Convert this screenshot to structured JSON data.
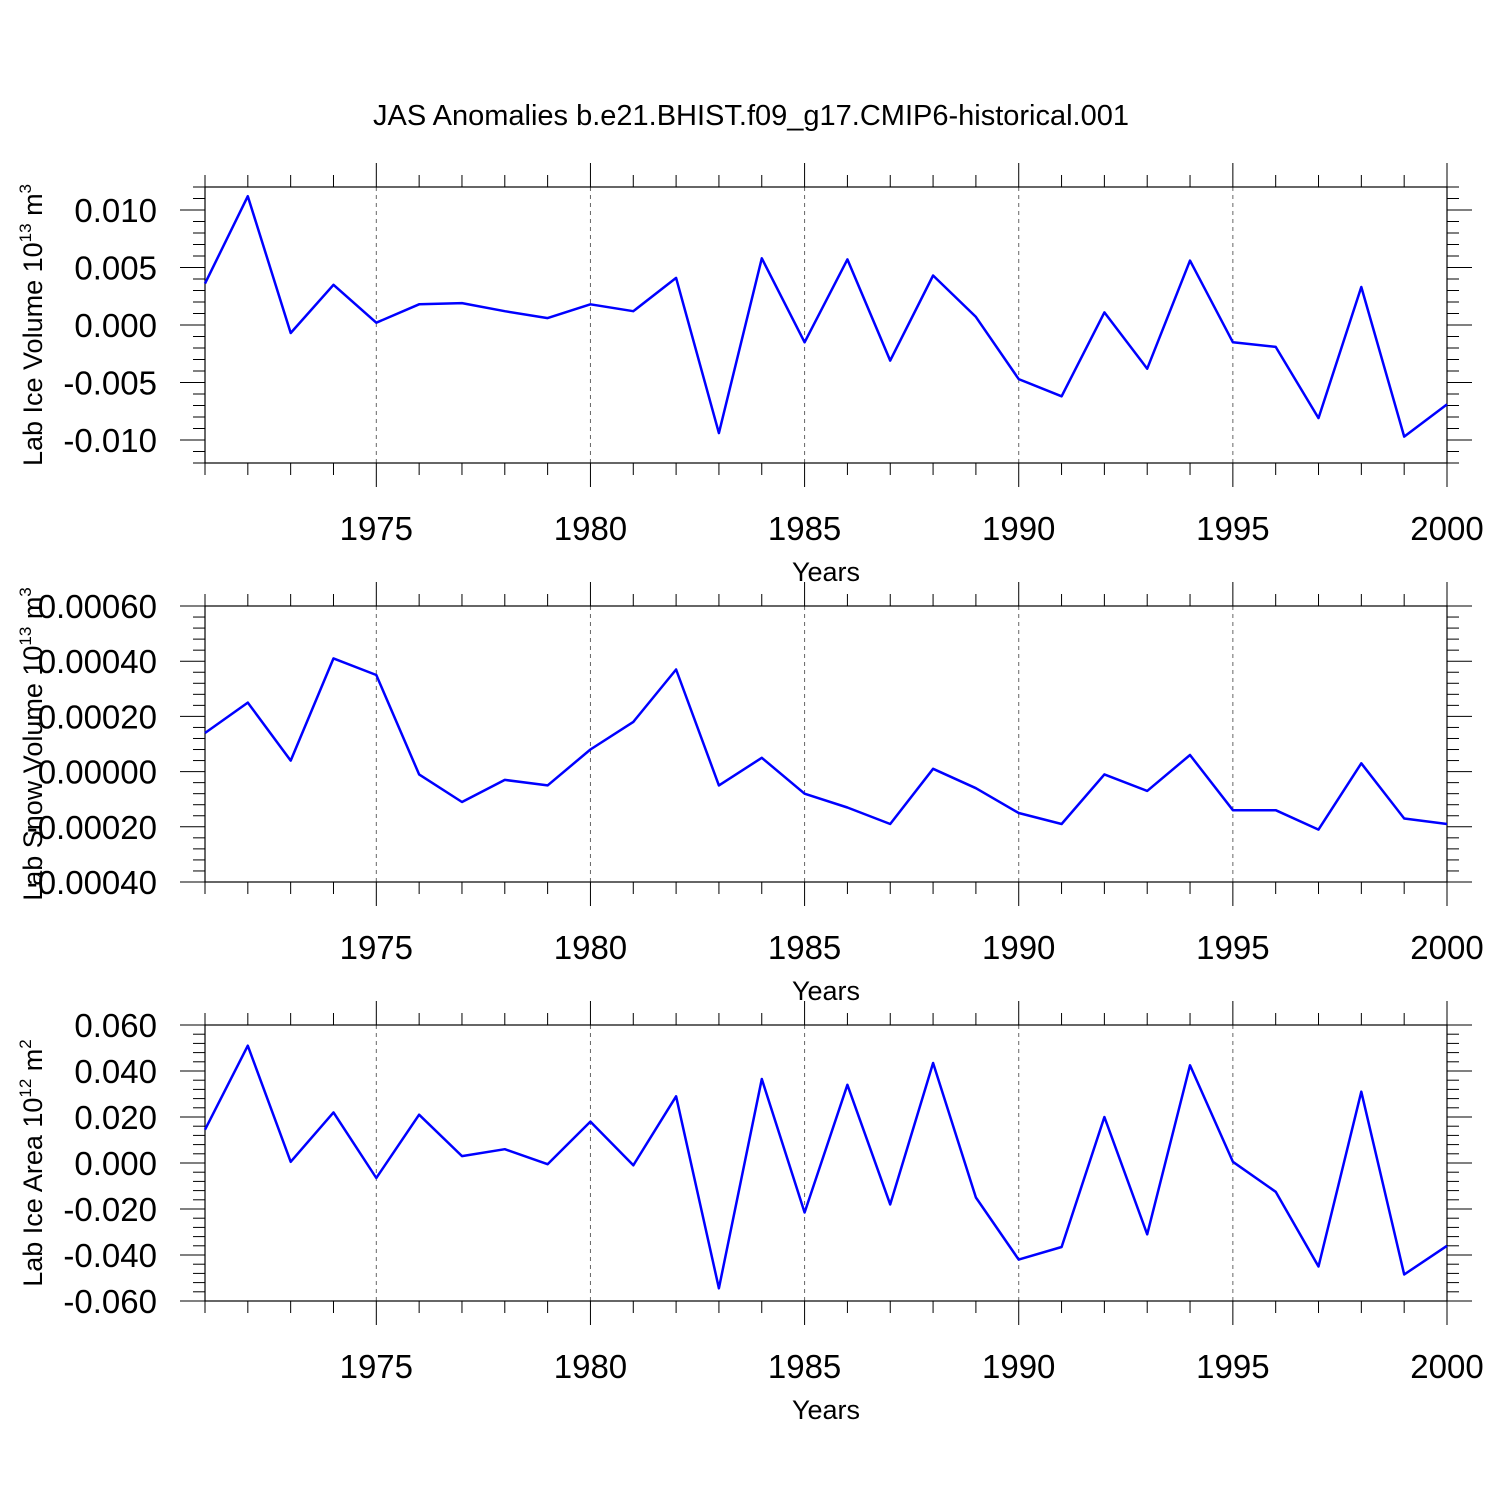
{
  "title": "JAS Anomalies b.e21.BHIST.f09_g17.CMIP6-historical.001",
  "colors": {
    "series": "#0000ff",
    "axis": "#000000",
    "grid": "#666666",
    "background": "#ffffff"
  },
  "chart_data": [
    {
      "type": "line",
      "ylabel": {
        "text": "Lab Ice Volume 10",
        "sup": "13",
        "unit": " m",
        "unit_sup": "3"
      },
      "xlabel": "Years",
      "xlim": [
        1971,
        2000
      ],
      "ylim": [
        -0.012,
        0.012
      ],
      "xticks": [
        1975,
        1980,
        1985,
        1990,
        1995,
        2000
      ],
      "yticks": [
        -0.01,
        -0.005,
        0.0,
        0.005,
        0.01
      ],
      "ytick_labels": [
        "-0.010",
        "-0.005",
        "0.000",
        "0.005",
        "0.010"
      ],
      "grid": "dashed vertical at major x ticks",
      "x": [
        1971,
        1972,
        1973,
        1974,
        1975,
        1976,
        1977,
        1978,
        1979,
        1980,
        1981,
        1982,
        1983,
        1984,
        1985,
        1986,
        1987,
        1988,
        1989,
        1990,
        1991,
        1992,
        1993,
        1994,
        1995,
        1996,
        1997,
        1998,
        1999,
        2000
      ],
      "values": [
        0.0036,
        0.0112,
        -0.0007,
        0.0035,
        0.0002,
        0.0018,
        0.0019,
        0.0012,
        0.0006,
        0.0018,
        0.0012,
        0.0041,
        -0.0094,
        0.0058,
        -0.0015,
        0.0057,
        -0.0031,
        0.0043,
        0.0007,
        -0.0047,
        -0.0062,
        0.0011,
        -0.0038,
        0.0056,
        -0.0015,
        -0.0019,
        -0.0081,
        0.0033,
        -0.0097,
        -0.0069
      ]
    },
    {
      "type": "line",
      "ylabel": {
        "text": "Lab Snow Volume 10",
        "sup": "13",
        "unit": " m",
        "unit_sup": "3"
      },
      "xlabel": "Years",
      "xlim": [
        1971,
        2000
      ],
      "ylim": [
        -0.0004,
        0.0006
      ],
      "xticks": [
        1975,
        1980,
        1985,
        1990,
        1995,
        2000
      ],
      "yticks": [
        -0.0004,
        -0.0002,
        0.0,
        0.0002,
        0.0004,
        0.0006
      ],
      "ytick_labels": [
        "-0.00040",
        "-0.00020",
        "0.00000",
        "0.00020",
        "0.00040",
        "0.00060"
      ],
      "grid": "dashed vertical at major x ticks",
      "x": [
        1971,
        1972,
        1973,
        1974,
        1975,
        1976,
        1977,
        1978,
        1979,
        1980,
        1981,
        1982,
        1983,
        1984,
        1985,
        1986,
        1987,
        1988,
        1989,
        1990,
        1991,
        1992,
        1993,
        1994,
        1995,
        1996,
        1997,
        1998,
        1999,
        2000
      ],
      "values": [
        0.00014,
        0.00025,
        4e-05,
        0.00041,
        0.00035,
        -1e-05,
        -0.00011,
        -3e-05,
        -5e-05,
        8e-05,
        0.00018,
        0.00037,
        -5e-05,
        5e-05,
        -8e-05,
        -0.00013,
        -0.00019,
        1e-05,
        -6e-05,
        -0.00015,
        -0.00019,
        -1e-05,
        -7e-05,
        6e-05,
        -0.00014,
        -0.00014,
        -0.00021,
        3e-05,
        -0.00017,
        -0.00019
      ]
    },
    {
      "type": "line",
      "ylabel": {
        "text": "Lab Ice Area 10",
        "sup": "12",
        "unit": " m",
        "unit_sup": "2"
      },
      "xlabel": "Years",
      "xlim": [
        1971,
        2000
      ],
      "ylim": [
        -0.06,
        0.06
      ],
      "xticks": [
        1975,
        1980,
        1985,
        1990,
        1995,
        2000
      ],
      "yticks": [
        -0.06,
        -0.04,
        -0.02,
        0.0,
        0.02,
        0.04,
        0.06
      ],
      "ytick_labels": [
        "-0.060",
        "-0.040",
        "-0.020",
        "0.000",
        "0.020",
        "0.040",
        "0.060"
      ],
      "grid": "dashed vertical at major x ticks",
      "x": [
        1971,
        1972,
        1973,
        1974,
        1975,
        1976,
        1977,
        1978,
        1979,
        1980,
        1981,
        1982,
        1983,
        1984,
        1985,
        1986,
        1987,
        1988,
        1989,
        1990,
        1991,
        1992,
        1993,
        1994,
        1995,
        1996,
        1997,
        1998,
        1999,
        2000
      ],
      "values": [
        0.0145,
        0.051,
        0.0005,
        0.022,
        -0.0065,
        0.021,
        0.003,
        0.006,
        -0.0005,
        0.018,
        -0.001,
        0.029,
        -0.0545,
        0.0365,
        -0.0215,
        0.034,
        -0.018,
        0.0435,
        -0.015,
        -0.042,
        -0.0365,
        0.02,
        -0.031,
        0.0425,
        0.0005,
        -0.0125,
        -0.045,
        0.031,
        -0.0485,
        -0.036
      ]
    }
  ]
}
